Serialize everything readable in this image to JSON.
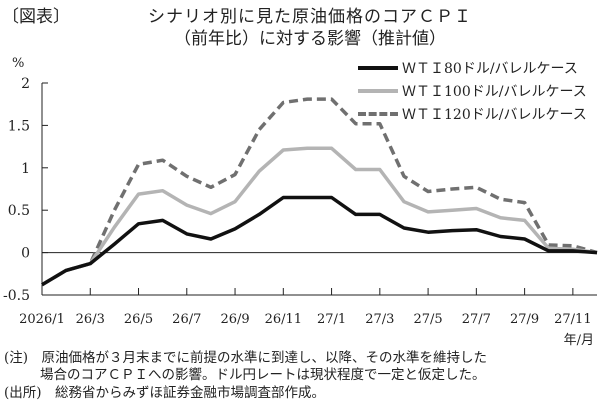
{
  "figure_label": "〔図表〕",
  "notes": [
    "(注)　原油価格が３月末までに前提の水準に到達し、以降、その水準を維持した",
    "場合のコアＣＰＩへの影響。ドル円レートは現状程度で一定と仮定した。",
    "(出所)　総務省からみずほ証券金融市場調査部作成。"
  ],
  "chart_data": {
    "type": "line",
    "title": [
      "シナリオ別に見た原油価格のコアＣＰＩ",
      "（前年比）に対する影響（推計値）"
    ],
    "ylabel": "%",
    "xlabel": "年/月",
    "ylim": [
      -0.5,
      2
    ],
    "yticks": [
      "2",
      "1.5",
      "1",
      "0.5",
      "0",
      "-0.5"
    ],
    "ytick_values": [
      2,
      1.5,
      1,
      0.5,
      0,
      -0.5
    ],
    "x": [
      "2026/1",
      "26/2",
      "26/3",
      "26/4",
      "26/5",
      "26/6",
      "26/7",
      "26/8",
      "26/9",
      "26/10",
      "26/11",
      "26/12",
      "27/1",
      "27/2",
      "27/3",
      "27/4",
      "27/5",
      "27/6",
      "27/7",
      "27/8",
      "27/9",
      "27/10",
      "27/11",
      "27/12"
    ],
    "xtick_labels": [
      "2026/1",
      "26/3",
      "26/5",
      "26/7",
      "26/9",
      "26/11",
      "27/1",
      "27/3",
      "27/5",
      "27/7",
      "27/9",
      "27/11"
    ],
    "legend_position": "top-right",
    "grid": false,
    "series": [
      {
        "name": "ＷＴＩ80ドル/バレルケース",
        "color": "#111111",
        "style": "solid",
        "values": [
          -0.38,
          -0.21,
          -0.13,
          0.1,
          0.34,
          0.38,
          0.22,
          0.16,
          0.28,
          0.45,
          0.65,
          0.65,
          0.65,
          0.45,
          0.45,
          0.29,
          0.24,
          0.26,
          0.27,
          0.19,
          0.16,
          0.02,
          0.02,
          0.0
        ]
      },
      {
        "name": "ＷＴＩ100ドル/バレルケース",
        "color": "#b4b4b4",
        "style": "solid",
        "values": [
          -0.38,
          -0.21,
          -0.13,
          0.3,
          0.69,
          0.73,
          0.56,
          0.46,
          0.6,
          0.96,
          1.21,
          1.23,
          1.23,
          0.98,
          0.98,
          0.6,
          0.48,
          0.5,
          0.52,
          0.41,
          0.38,
          0.05,
          0.04,
          0.0
        ]
      },
      {
        "name": "ＷＴＩ120ドル/バレルケース",
        "color": "#707070",
        "style": "dashed",
        "values": [
          -0.38,
          -0.21,
          -0.13,
          0.5,
          1.04,
          1.09,
          0.9,
          0.77,
          0.92,
          1.45,
          1.77,
          1.81,
          1.81,
          1.52,
          1.52,
          0.9,
          0.72,
          0.75,
          0.77,
          0.63,
          0.59,
          0.09,
          0.08,
          0.0
        ]
      }
    ]
  }
}
